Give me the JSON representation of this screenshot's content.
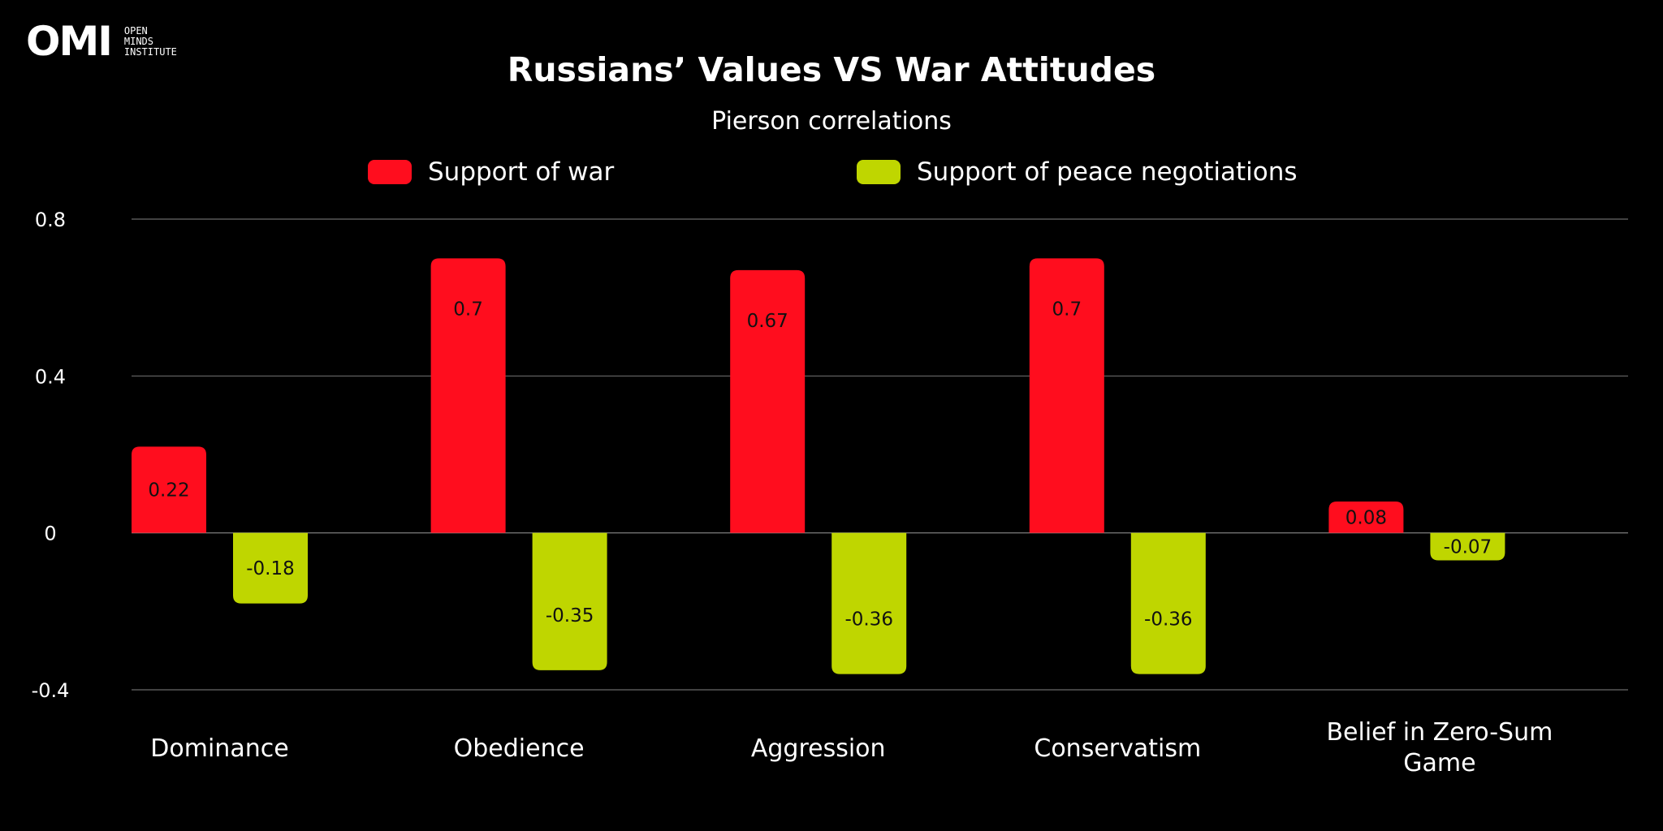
{
  "logo": {
    "mark": "OMI",
    "lines": [
      "OPEN",
      "MINDS",
      "INSTITUTE"
    ]
  },
  "chart_data": {
    "type": "bar",
    "title": "Russians’ Values VS War Attitudes",
    "subtitle": "Pierson correlations",
    "categories": [
      "Dominance",
      "Obedience",
      "Aggression",
      "Conservatism",
      "Belief in Zero-Sum Game"
    ],
    "series": [
      {
        "name": "Support of war",
        "color": "#FF0D1E",
        "values": [
          0.22,
          0.7,
          0.67,
          0.7,
          0.08
        ]
      },
      {
        "name": "Support of peace negotiations",
        "color": "#BFD600",
        "values": [
          -0.18,
          -0.35,
          -0.36,
          -0.36,
          -0.07
        ]
      }
    ],
    "ylim": [
      -0.4,
      0.8
    ],
    "yticks": [
      "0.8",
      "0.4",
      "0",
      "-0.4"
    ],
    "grid": true,
    "legend": "top"
  }
}
